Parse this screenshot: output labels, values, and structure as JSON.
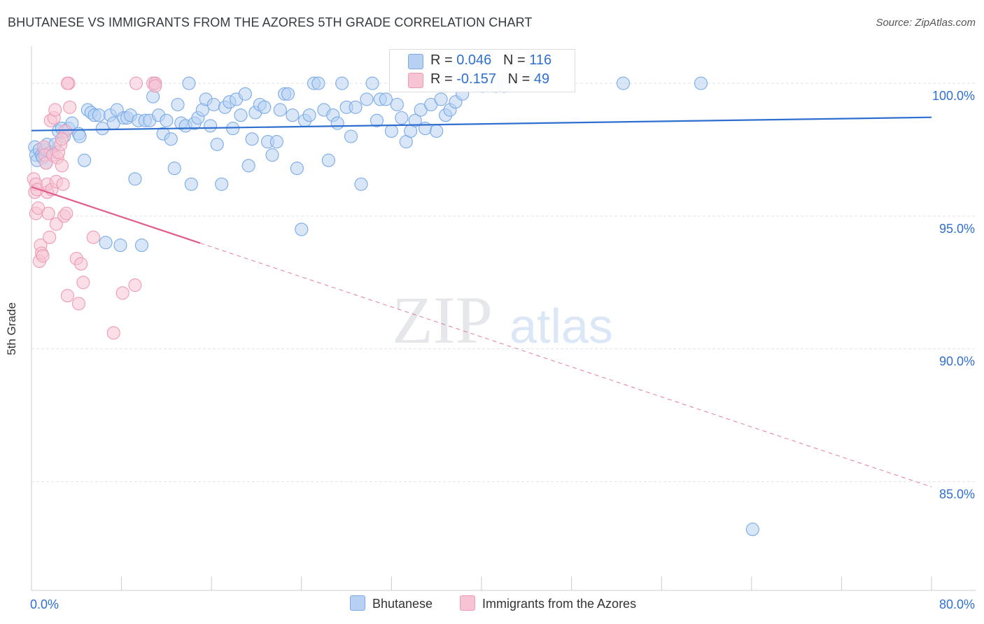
{
  "header": {
    "title": "BHUTANESE VS IMMIGRANTS FROM THE AZORES 5TH GRADE CORRELATION CHART",
    "source": "Source: ZipAtlas.com"
  },
  "watermark": {
    "zip": "ZIP",
    "atlas": "atlas"
  },
  "stats": [
    {
      "r_label": "R = ",
      "r_value": "0.046",
      "n_label": "N = ",
      "n_value": "116"
    },
    {
      "r_label": "R = ",
      "r_value": "-0.157",
      "n_label": "N = ",
      "n_value": "49"
    }
  ],
  "legend": [
    {
      "label": "Bhutanese"
    },
    {
      "label": "Immigrants from the Azores"
    }
  ],
  "chart_data": {
    "type": "scatter",
    "title": "BHUTANESE VS IMMIGRANTS FROM THE AZORES 5TH GRADE CORRELATION CHART",
    "xlabel": "",
    "ylabel": "5th Grade",
    "xlim": [
      0,
      80
    ],
    "ylim": [
      80.9,
      101.4
    ],
    "x_tick_labels": [
      {
        "value": 0,
        "label": "0.0%"
      },
      {
        "value": 80,
        "label": "80.0%"
      }
    ],
    "y_tick_labels": [
      {
        "value": 100,
        "label": "100.0%"
      },
      {
        "value": 95,
        "label": "95.0%"
      },
      {
        "value": 90,
        "label": "90.0%"
      },
      {
        "value": 85,
        "label": "85.0%"
      }
    ],
    "series": [
      {
        "name": "Bhutanese",
        "color": "#7aaae8",
        "fill": "#b8d1f3",
        "line_color": "#2e6fd0",
        "trend": {
          "x_start": 0,
          "y_start": 98.22,
          "x_end": 80,
          "y_end": 98.72,
          "dashed_from": null
        },
        "points": [
          [
            0.3,
            97.6
          ],
          [
            0.4,
            97.3
          ],
          [
            0.5,
            97.1
          ],
          [
            0.7,
            97.5
          ],
          [
            0.9,
            97.3
          ],
          [
            1.0,
            97.2
          ],
          [
            1.2,
            97.5
          ],
          [
            1.3,
            97.0
          ],
          [
            1.4,
            97.7
          ],
          [
            1.7,
            97.4
          ],
          [
            2.1,
            97.7
          ],
          [
            2.4,
            98.2
          ],
          [
            2.7,
            98.3
          ],
          [
            2.9,
            98.0
          ],
          [
            3.3,
            98.3
          ],
          [
            3.6,
            98.5
          ],
          [
            4.2,
            98.1
          ],
          [
            4.3,
            98.0
          ],
          [
            4.7,
            97.1
          ],
          [
            5.0,
            99.0
          ],
          [
            5.3,
            98.9
          ],
          [
            5.6,
            98.8
          ],
          [
            6.0,
            98.8
          ],
          [
            6.3,
            98.3
          ],
          [
            6.6,
            94.0
          ],
          [
            7.0,
            98.8
          ],
          [
            7.3,
            98.5
          ],
          [
            7.6,
            99.0
          ],
          [
            7.9,
            93.9
          ],
          [
            8.2,
            98.7
          ],
          [
            8.5,
            98.7
          ],
          [
            8.8,
            98.8
          ],
          [
            9.2,
            96.4
          ],
          [
            9.5,
            98.6
          ],
          [
            9.8,
            93.9
          ],
          [
            10.1,
            98.6
          ],
          [
            10.5,
            98.6
          ],
          [
            10.8,
            99.5
          ],
          [
            11.0,
            100.0
          ],
          [
            11.3,
            98.8
          ],
          [
            11.7,
            98.1
          ],
          [
            12.0,
            98.6
          ],
          [
            12.4,
            97.9
          ],
          [
            12.7,
            96.8
          ],
          [
            13.0,
            99.2
          ],
          [
            13.3,
            98.5
          ],
          [
            13.7,
            98.4
          ],
          [
            14.0,
            100.0
          ],
          [
            14.2,
            96.2
          ],
          [
            14.5,
            98.5
          ],
          [
            14.8,
            98.7
          ],
          [
            15.2,
            99.0
          ],
          [
            15.5,
            99.4
          ],
          [
            15.9,
            98.4
          ],
          [
            16.2,
            99.2
          ],
          [
            16.5,
            97.7
          ],
          [
            16.9,
            96.2
          ],
          [
            17.2,
            99.1
          ],
          [
            17.6,
            99.3
          ],
          [
            17.9,
            98.3
          ],
          [
            18.2,
            99.4
          ],
          [
            18.6,
            98.8
          ],
          [
            19.0,
            99.6
          ],
          [
            19.3,
            96.9
          ],
          [
            19.6,
            97.9
          ],
          [
            19.9,
            98.9
          ],
          [
            20.3,
            99.2
          ],
          [
            20.7,
            99.1
          ],
          [
            21.0,
            97.8
          ],
          [
            21.4,
            97.3
          ],
          [
            21.8,
            97.8
          ],
          [
            22.1,
            99.0
          ],
          [
            22.5,
            99.6
          ],
          [
            22.8,
            99.6
          ],
          [
            23.2,
            98.8
          ],
          [
            23.6,
            96.8
          ],
          [
            24.0,
            94.5
          ],
          [
            24.3,
            98.6
          ],
          [
            24.7,
            98.8
          ],
          [
            25.1,
            100.0
          ],
          [
            25.5,
            100.0
          ],
          [
            26.0,
            99.0
          ],
          [
            26.4,
            97.1
          ],
          [
            26.8,
            98.8
          ],
          [
            27.2,
            98.5
          ],
          [
            27.6,
            100.0
          ],
          [
            28.0,
            99.1
          ],
          [
            28.4,
            98.0
          ],
          [
            28.8,
            99.1
          ],
          [
            29.3,
            96.2
          ],
          [
            29.8,
            99.4
          ],
          [
            30.3,
            100.0
          ],
          [
            30.7,
            98.6
          ],
          [
            31.0,
            99.4
          ],
          [
            31.5,
            99.4
          ],
          [
            32.0,
            98.2
          ],
          [
            32.5,
            99.2
          ],
          [
            32.9,
            98.7
          ],
          [
            33.3,
            97.8
          ],
          [
            33.7,
            98.2
          ],
          [
            34.1,
            98.6
          ],
          [
            34.6,
            99.0
          ],
          [
            35.0,
            98.3
          ],
          [
            35.5,
            99.2
          ],
          [
            36.0,
            98.2
          ],
          [
            36.4,
            99.4
          ],
          [
            36.8,
            98.8
          ],
          [
            37.2,
            99.0
          ],
          [
            37.7,
            99.3
          ],
          [
            38.3,
            99.6
          ],
          [
            39.3,
            100.0
          ],
          [
            40.1,
            99.9
          ],
          [
            41.3,
            99.9
          ],
          [
            42.0,
            99.9
          ],
          [
            52.6,
            100.0
          ],
          [
            59.5,
            100.0
          ],
          [
            64.1,
            83.2
          ]
        ]
      },
      {
        "name": "Immigrants from the Azores",
        "color": "#ee9ab5",
        "fill": "#f7c4d4",
        "line_color": "#e05c8c",
        "trend": {
          "x_start": 0,
          "y_start": 96.1,
          "x_end": 80,
          "y_end": 84.8,
          "dashed_from": 15
        },
        "points": [
          [
            0.2,
            96.4
          ],
          [
            0.3,
            95.9
          ],
          [
            0.4,
            96.2
          ],
          [
            0.4,
            95.1
          ],
          [
            0.5,
            96.0
          ],
          [
            0.6,
            95.3
          ],
          [
            0.7,
            93.3
          ],
          [
            0.8,
            93.9
          ],
          [
            0.9,
            93.6
          ],
          [
            1.0,
            93.5
          ],
          [
            1.1,
            97.6
          ],
          [
            1.2,
            97.3
          ],
          [
            1.3,
            97.0
          ],
          [
            1.4,
            95.9
          ],
          [
            1.4,
            96.2
          ],
          [
            1.5,
            95.1
          ],
          [
            1.6,
            94.2
          ],
          [
            1.7,
            98.6
          ],
          [
            1.8,
            96.0
          ],
          [
            1.9,
            97.3
          ],
          [
            2.0,
            98.7
          ],
          [
            2.1,
            99.0
          ],
          [
            2.2,
            94.7
          ],
          [
            2.2,
            96.3
          ],
          [
            2.3,
            97.2
          ],
          [
            2.4,
            97.4
          ],
          [
            2.6,
            97.7
          ],
          [
            2.7,
            96.9
          ],
          [
            2.8,
            96.2
          ],
          [
            2.9,
            95.0
          ],
          [
            3.0,
            98.2
          ],
          [
            3.1,
            95.1
          ],
          [
            2.7,
            97.9
          ],
          [
            3.4,
            99.1
          ],
          [
            3.3,
            100.0
          ],
          [
            3.2,
            100.0
          ],
          [
            3.2,
            92.0
          ],
          [
            4.0,
            93.4
          ],
          [
            4.2,
            91.7
          ],
          [
            4.4,
            93.2
          ],
          [
            4.6,
            92.5
          ],
          [
            5.5,
            94.2
          ],
          [
            7.3,
            90.6
          ],
          [
            8.1,
            92.1
          ],
          [
            9.2,
            92.4
          ],
          [
            9.3,
            100.0
          ],
          [
            10.8,
            100.0
          ],
          [
            11.0,
            100.0
          ],
          [
            11.0,
            99.9
          ]
        ]
      }
    ]
  },
  "colors": {
    "blue_fill": "#b8d1f3",
    "blue_stroke": "#7aaae8",
    "blue_line": "#2e6fd0",
    "pink_fill": "#f7c4d4",
    "pink_stroke": "#ee9ab5",
    "pink_line": "#e05c8c",
    "tick_label": "#2e6fd0",
    "grid": "#dfe3e8"
  }
}
